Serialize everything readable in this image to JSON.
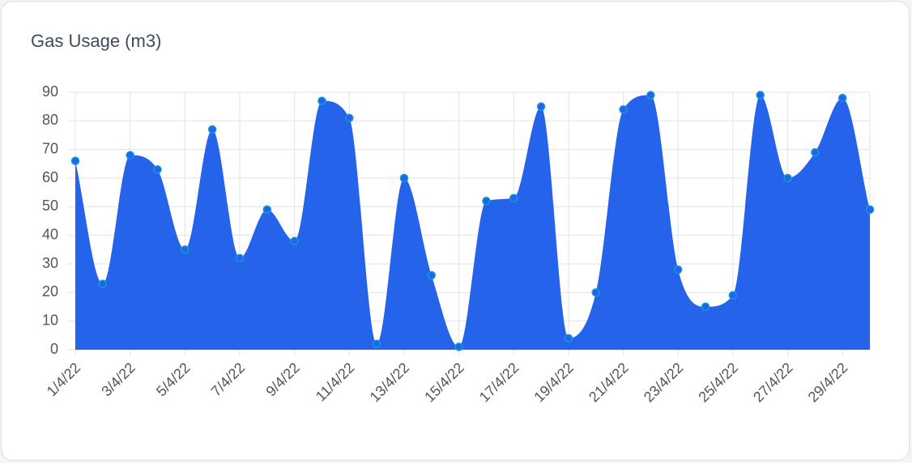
{
  "chart_data": {
    "type": "area",
    "title": "Gas Usage (m3)",
    "categories": [
      "1/4/22",
      null,
      "3/4/22",
      null,
      "5/4/22",
      null,
      "7/4/22",
      null,
      "9/4/22",
      null,
      "11/4/22",
      null,
      "13/4/22",
      null,
      "15/4/22",
      null,
      "17/4/22",
      null,
      "19/4/22",
      null,
      "21/4/22",
      null,
      "23/4/22",
      null,
      "25/4/22",
      null,
      "27/4/22",
      null,
      "29/4/22",
      null
    ],
    "values": [
      66,
      23,
      68,
      63,
      35,
      77,
      32,
      49,
      38,
      87,
      81,
      2,
      60,
      26,
      1,
      52,
      53,
      85,
      4,
      20,
      84,
      89,
      28,
      15,
      19,
      89,
      60,
      69,
      88,
      49
    ],
    "color": "#2563eb",
    "ylim": [
      0,
      90
    ],
    "yticks": [
      0,
      10,
      20,
      30,
      40,
      50,
      60,
      70,
      80,
      90
    ],
    "grid": true
  }
}
